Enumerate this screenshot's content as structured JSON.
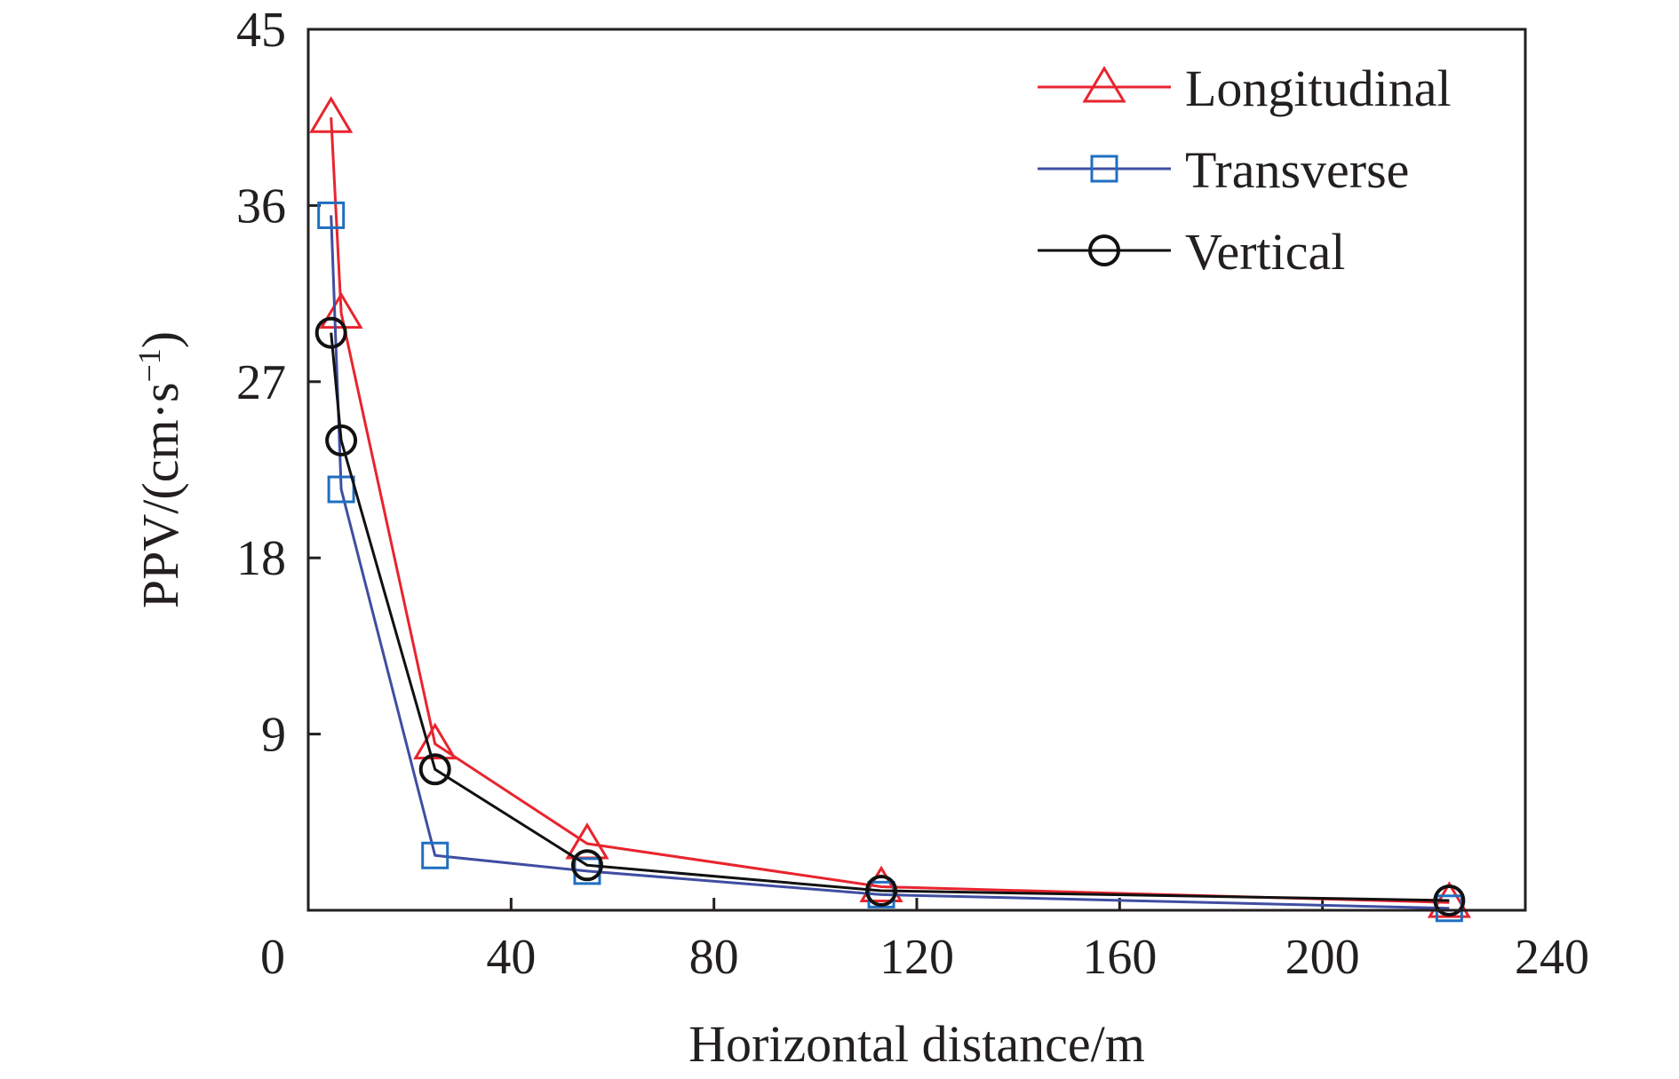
{
  "chart_data": {
    "type": "line",
    "title": "",
    "xlabel": "Horizontal distance/m",
    "ylabel": {
      "main": "PPV/(cm·s",
      "sup": "−1",
      "close": ")"
    },
    "xlim": [
      0,
      240
    ],
    "ylim": [
      0,
      45
    ],
    "xticks": [
      0,
      40,
      80,
      120,
      160,
      200,
      240
    ],
    "yticks": [
      9,
      18,
      27,
      36,
      45
    ],
    "grid": false,
    "legend_position": "top-right",
    "series": [
      {
        "name": "Longitudinal",
        "color": "#e8242e",
        "marker": "triangle",
        "x": [
          4.5,
          6.5,
          25,
          55,
          113,
          225
        ],
        "y": [
          40.5,
          30.5,
          8.5,
          3.4,
          1.2,
          0.4
        ]
      },
      {
        "name": "Transverse",
        "color": "#3f4ea1",
        "marker_color": "#1f6fc0",
        "marker": "square",
        "x": [
          4.5,
          6.5,
          25,
          55,
          113,
          225
        ],
        "y": [
          35.5,
          21.5,
          2.8,
          2.0,
          0.8,
          0.1
        ]
      },
      {
        "name": "Vertical",
        "color": "#111111",
        "marker": "circle",
        "x": [
          4.5,
          6.5,
          25,
          55,
          113,
          225
        ],
        "y": [
          29.5,
          24.0,
          7.2,
          2.3,
          1.0,
          0.5
        ]
      }
    ]
  }
}
